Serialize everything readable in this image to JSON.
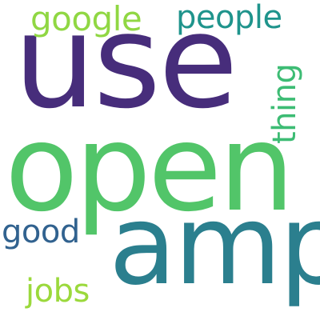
{
  "words": {
    "use": {
      "text": "use",
      "color": "#472d7b"
    },
    "open": {
      "text": "open",
      "color": "#52c569"
    },
    "amp": {
      "text": "amp",
      "color": "#2b7f8e"
    },
    "google": {
      "text": "google",
      "color": "#90d743"
    },
    "people": {
      "text": "people",
      "color": "#1f948c"
    },
    "thing": {
      "text": "thing",
      "color": "#3dbc74"
    },
    "good": {
      "text": "good",
      "color": "#31628f"
    },
    "jobs": {
      "text": "jobs",
      "color": "#9bd93c"
    }
  }
}
